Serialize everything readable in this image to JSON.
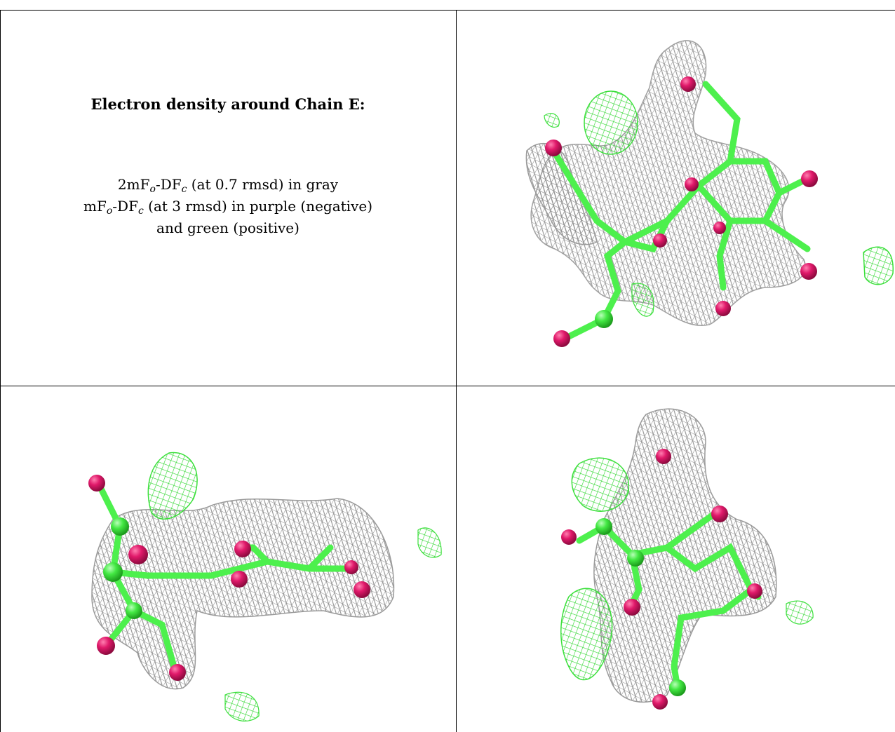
{
  "caption": {
    "title": "Electron density around Chain E:",
    "line1": {
      "a": "2mF",
      "sub_o": "o",
      "b": "-DF",
      "sub_c": "c",
      "c": " (at 0.7 rmsd) in gray"
    },
    "line2": {
      "a": "mF",
      "sub_o": "o",
      "b": "-DF",
      "sub_c": "c",
      "c": " (at 3 rmsd) in purple (negative)"
    },
    "line3": "and green (positive)"
  },
  "colors": {
    "positive_density": "#3be03b",
    "gray_density": "#9a9a9a",
    "negative_density": "#8a1fa8",
    "oxygen": "#e0196a",
    "carbon_bond": "#4df04d"
  },
  "panels": [
    {
      "name": "top-right-density-view"
    },
    {
      "name": "bottom-left-density-view"
    },
    {
      "name": "bottom-right-density-view"
    }
  ]
}
